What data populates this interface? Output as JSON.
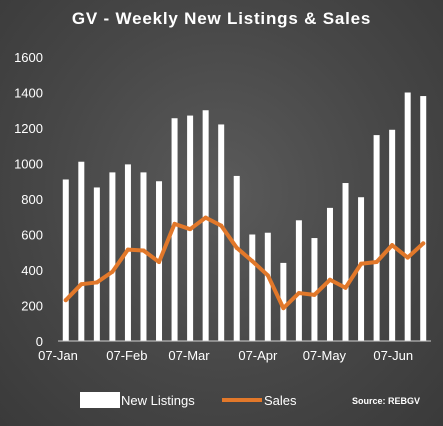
{
  "chart_data": {
    "type": "bar",
    "title": "GV - Weekly New Listings & Sales",
    "xlabel": "",
    "ylabel": "",
    "ylim": [
      0,
      1600
    ],
    "yticks": [
      0,
      200,
      400,
      600,
      800,
      1000,
      1200,
      1400,
      1600
    ],
    "xtick_labels": [
      "07-Jan",
      "07-Feb",
      "07-Mar",
      "07-Apr",
      "07-May",
      "07-Jun"
    ],
    "xtick_indices": [
      0,
      4.43,
      8.43,
      12.86,
      17.14,
      21.57
    ],
    "grid": false,
    "legend_position": "bottom",
    "source": "Source: REBGV",
    "colors": {
      "listings": "#ffffff",
      "sales": "#e2782a"
    },
    "series": [
      {
        "name": "New Listings",
        "type": "bar",
        "values": [
          910,
          1010,
          865,
          950,
          995,
          950,
          900,
          1255,
          1270,
          1300,
          1220,
          930,
          600,
          610,
          440,
          680,
          580,
          750,
          890,
          810,
          1160,
          1190,
          1400,
          1380
        ]
      },
      {
        "name": "Sales",
        "type": "line",
        "values": [
          230,
          320,
          330,
          390,
          515,
          510,
          445,
          660,
          630,
          695,
          650,
          525,
          450,
          370,
          185,
          270,
          260,
          345,
          300,
          435,
          445,
          540,
          470,
          550
        ]
      }
    ]
  }
}
